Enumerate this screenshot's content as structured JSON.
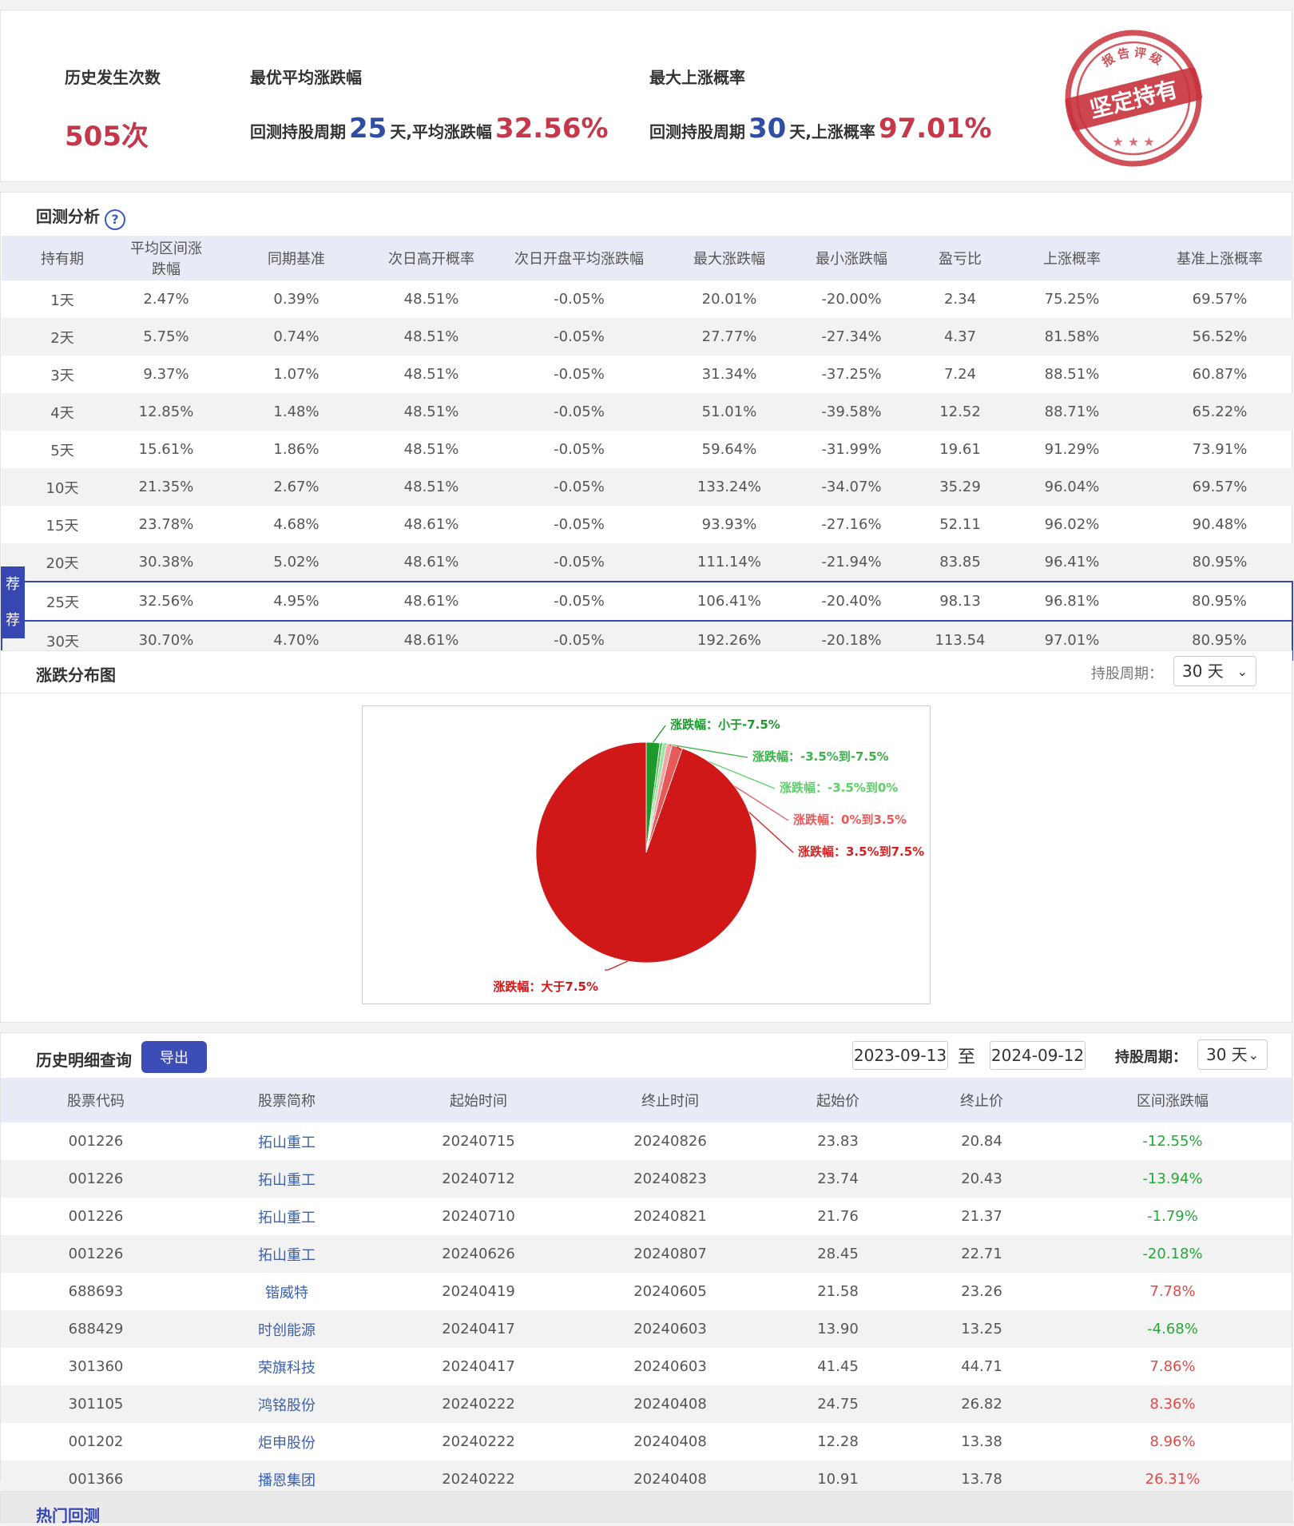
{
  "summary": {
    "history_count": {
      "label": "历史发生次数",
      "value": "505次"
    },
    "best_avg": {
      "label": "最优平均涨跌幅",
      "prefix": "回测持股周期",
      "days": "25",
      "mid": "天,平均涨跌幅",
      "value": "32.56%"
    },
    "max_up": {
      "label": "最大上涨概率",
      "prefix": "回测持股周期",
      "days": "30",
      "mid": "天,上涨概率",
      "value": "97.01%"
    },
    "stamp": {
      "top_text": "报告评级",
      "main_text": "坚定持有"
    }
  },
  "backtest": {
    "title": "回测分析",
    "help_icon": "?",
    "recommend_badge": "荐",
    "headers": [
      "持有期",
      "平均区间涨跌幅",
      "同期基准",
      "次日高开概率",
      "次日开盘平均涨跌幅",
      "最大涨跌幅",
      "最小涨跌幅",
      "盈亏比",
      "上涨概率",
      "基准上涨概率"
    ],
    "rows": [
      [
        "1天",
        "2.47%",
        "0.39%",
        "48.51%",
        "-0.05%",
        "20.01%",
        "-20.00%",
        "2.34",
        "75.25%",
        "69.57%"
      ],
      [
        "2天",
        "5.75%",
        "0.74%",
        "48.51%",
        "-0.05%",
        "27.77%",
        "-27.34%",
        "4.37",
        "81.58%",
        "56.52%"
      ],
      [
        "3天",
        "9.37%",
        "1.07%",
        "48.51%",
        "-0.05%",
        "31.34%",
        "-37.25%",
        "7.24",
        "88.51%",
        "60.87%"
      ],
      [
        "4天",
        "12.85%",
        "1.48%",
        "48.51%",
        "-0.05%",
        "51.01%",
        "-39.58%",
        "12.52",
        "88.71%",
        "65.22%"
      ],
      [
        "5天",
        "15.61%",
        "1.86%",
        "48.51%",
        "-0.05%",
        "59.64%",
        "-31.99%",
        "19.61",
        "91.29%",
        "73.91%"
      ],
      [
        "10天",
        "21.35%",
        "2.67%",
        "48.51%",
        "-0.05%",
        "133.24%",
        "-34.07%",
        "35.29",
        "96.04%",
        "69.57%"
      ],
      [
        "15天",
        "23.78%",
        "4.68%",
        "48.61%",
        "-0.05%",
        "93.93%",
        "-27.16%",
        "52.11",
        "96.02%",
        "90.48%"
      ],
      [
        "20天",
        "30.38%",
        "5.02%",
        "48.61%",
        "-0.05%",
        "111.14%",
        "-21.94%",
        "83.85",
        "96.41%",
        "80.95%"
      ],
      [
        "25天",
        "32.56%",
        "4.95%",
        "48.61%",
        "-0.05%",
        "106.41%",
        "-20.40%",
        "98.13",
        "96.81%",
        "80.95%"
      ],
      [
        "30天",
        "30.70%",
        "4.70%",
        "48.61%",
        "-0.05%",
        "192.26%",
        "-20.18%",
        "113.54",
        "97.01%",
        "80.95%"
      ]
    ],
    "recommended_rows": [
      8,
      9
    ]
  },
  "distribution": {
    "title": "涨跌分布图",
    "period_label": "持股周期：",
    "period_value": "30 天"
  },
  "chart_data": {
    "type": "pie",
    "categories": [
      "涨跌幅：小于-7.5%",
      "涨跌幅：-3.5%到-7.5%",
      "涨跌幅：-3.5%到0%",
      "涨跌幅：0%到3.5%",
      "涨跌幅：3.5%到7.5%",
      "涨跌幅：大于7.5%"
    ],
    "values": [
      10,
      2,
      3,
      4,
      8,
      478
    ],
    "colors": [
      "#1e9a2d",
      "#52c05b",
      "#9fe3a2",
      "#f2a3a3",
      "#e85a5a",
      "#d01818"
    ],
    "label_colors": [
      "#1e9a2d",
      "#3cb24a",
      "#5ccf68",
      "#e85a5a",
      "#d81e1e",
      "#d01818"
    ]
  },
  "history": {
    "title": "历史明细查询",
    "export_label": "导出",
    "start_date": "2023-09-13",
    "to_label": "至",
    "end_date": "2024-09-12",
    "period_label": "持股周期：",
    "period_value": "30 天",
    "headers": [
      "股票代码",
      "股票简称",
      "起始时间",
      "终止时间",
      "起始价",
      "终止价",
      "区间涨跌幅"
    ],
    "rows": [
      [
        "001226",
        "拓山重工",
        "20240715",
        "20240826",
        "23.83",
        "20.84",
        "-12.55%"
      ],
      [
        "001226",
        "拓山重工",
        "20240712",
        "20240823",
        "23.74",
        "20.43",
        "-13.94%"
      ],
      [
        "001226",
        "拓山重工",
        "20240710",
        "20240821",
        "21.76",
        "21.37",
        "-1.79%"
      ],
      [
        "001226",
        "拓山重工",
        "20240626",
        "20240807",
        "28.45",
        "22.71",
        "-20.18%"
      ],
      [
        "688693",
        "锴威特",
        "20240419",
        "20240605",
        "21.58",
        "23.26",
        "7.78%"
      ],
      [
        "688429",
        "时创能源",
        "20240417",
        "20240603",
        "13.90",
        "13.25",
        "-4.68%"
      ],
      [
        "301360",
        "荣旗科技",
        "20240417",
        "20240603",
        "41.45",
        "44.71",
        "7.86%"
      ],
      [
        "301105",
        "鸿铭股份",
        "20240222",
        "20240408",
        "24.75",
        "26.82",
        "8.36%"
      ],
      [
        "001202",
        "炬申股份",
        "20240222",
        "20240408",
        "12.28",
        "13.38",
        "8.96%"
      ],
      [
        "001366",
        "播恩集团",
        "20240222",
        "20240408",
        "10.91",
        "13.78",
        "26.31%"
      ]
    ]
  },
  "hot": {
    "title": "热门回测"
  }
}
